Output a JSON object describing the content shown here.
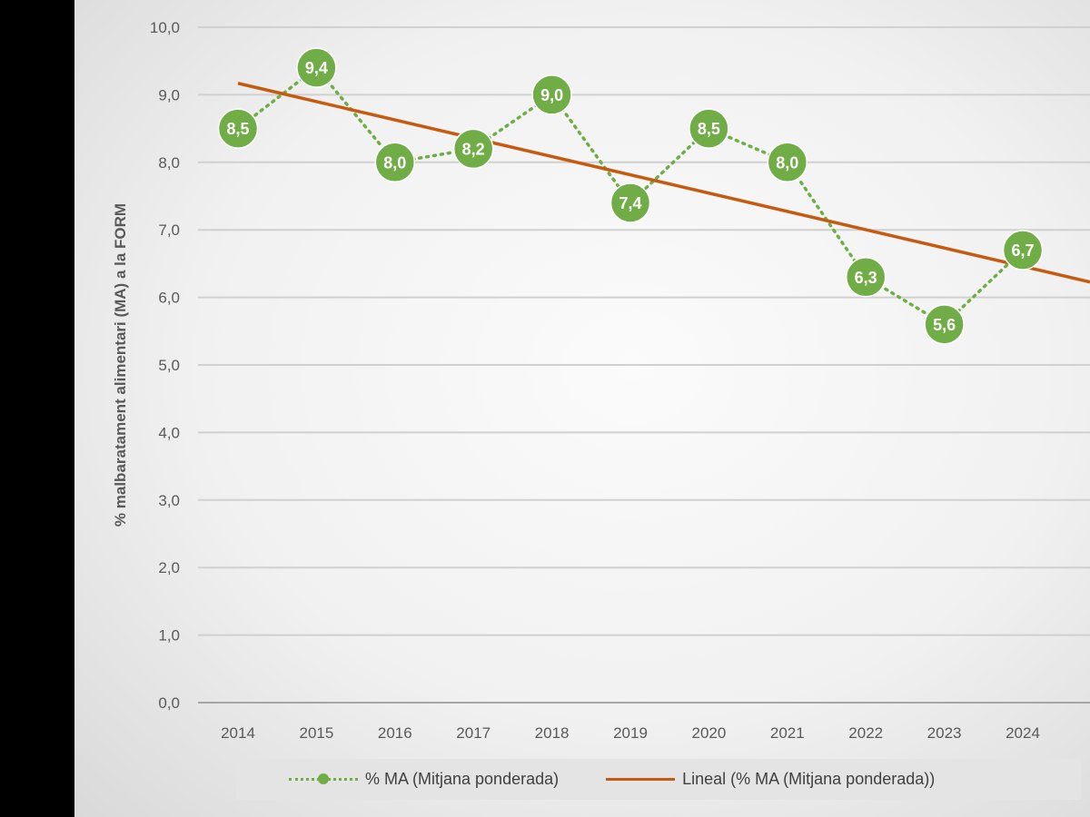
{
  "chart_data": {
    "type": "line",
    "title": "",
    "xlabel": "",
    "ylabel": "% malbaratament alimentari (MA) a la FORM",
    "ylim": [
      0,
      10
    ],
    "yticks": [
      "0,0",
      "1,0",
      "2,0",
      "3,0",
      "4,0",
      "5,0",
      "6,0",
      "7,0",
      "8,0",
      "9,0",
      "10,0"
    ],
    "categories": [
      "2014",
      "2015",
      "2016",
      "2017",
      "2018",
      "2019",
      "2020",
      "2021",
      "2022",
      "2023",
      "2024"
    ],
    "series": [
      {
        "name": "% MA (Mitjana ponderada)",
        "values": [
          8.5,
          9.4,
          8.0,
          8.2,
          9.0,
          7.4,
          8.5,
          8.0,
          6.3,
          5.6,
          6.7
        ],
        "labels": [
          "8,5",
          "9,4",
          "8,0",
          "8,2",
          "9,0",
          "7,4",
          "8,5",
          "8,0",
          "6,3",
          "5,6",
          "6,7"
        ],
        "color": "#70ad47",
        "style": "dotted-markers"
      },
      {
        "name": "Lineal (% MA (Mitjana ponderada))",
        "trend_start": 9.17,
        "trend_slope": -0.271,
        "color": "#c55a11",
        "style": "solid"
      }
    ],
    "grid": true,
    "legend": "bottom"
  }
}
